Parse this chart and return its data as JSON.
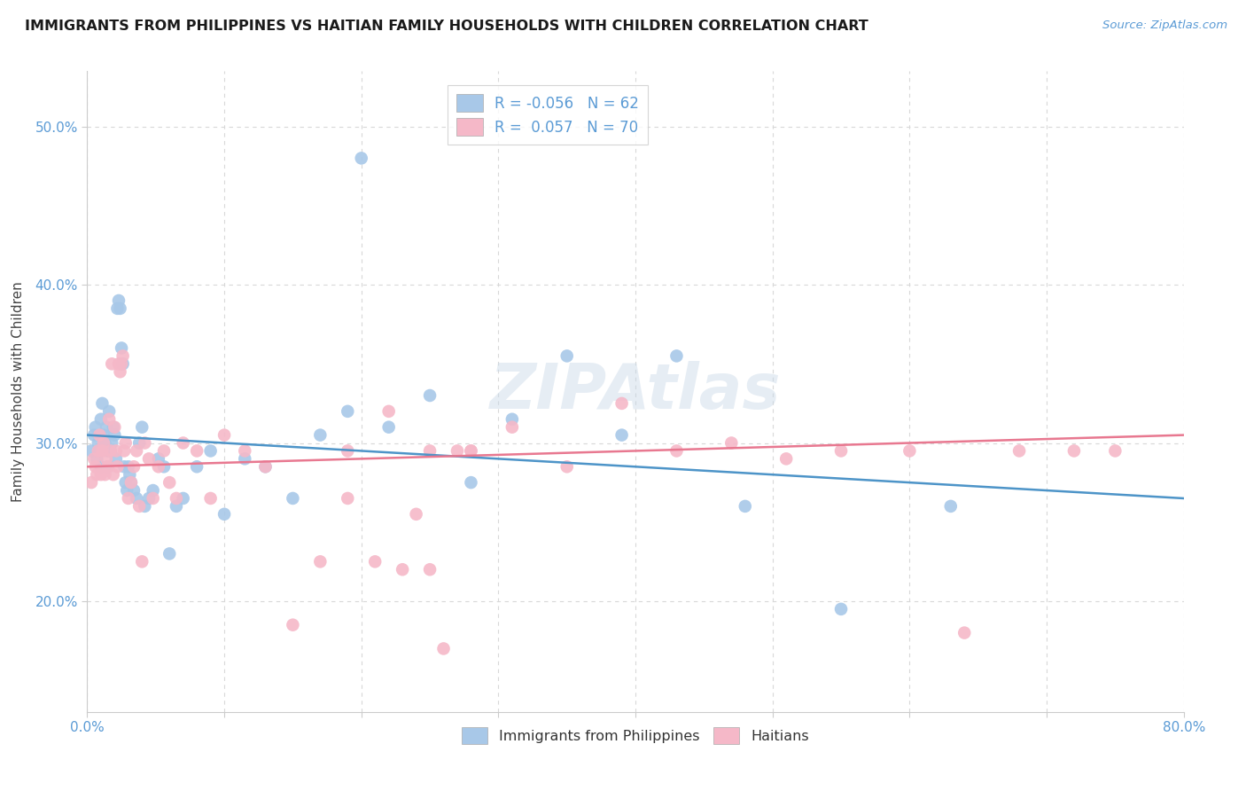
{
  "title": "IMMIGRANTS FROM PHILIPPINES VS HAITIAN FAMILY HOUSEHOLDS WITH CHILDREN CORRELATION CHART",
  "source": "Source: ZipAtlas.com",
  "ylabel": "Family Households with Children",
  "xlim": [
    0.0,
    0.8
  ],
  "ylim": [
    0.13,
    0.535
  ],
  "yticks": [
    0.2,
    0.3,
    0.4,
    0.5
  ],
  "ytick_labels": [
    "20.0%",
    "30.0%",
    "40.0%",
    "50.0%"
  ],
  "xticks": [
    0.0,
    0.1,
    0.2,
    0.3,
    0.4,
    0.5,
    0.6,
    0.7,
    0.8
  ],
  "background_color": "#ffffff",
  "grid_color": "#d8d8d8",
  "title_color": "#1a1a1a",
  "axis_tick_color": "#5b9bd5",
  "ylabel_color": "#444444",
  "watermark_text": "ZIPAtlas",
  "legend_top": {
    "series1_label": "R = -0.056   N = 62",
    "series2_label": "R =  0.057   N = 70",
    "series1_color": "#a8c8e8",
    "series2_color": "#f5b8c8"
  },
  "legend_bottom": {
    "series1_label": "Immigrants from Philippines",
    "series2_label": "Haitians",
    "series1_color": "#a8c8e8",
    "series2_color": "#f5b8c8"
  },
  "series1_color": "#a8c8e8",
  "series2_color": "#f5b8c8",
  "series1_line_color": "#4d94c8",
  "series2_line_color": "#e87890",
  "philippines_x": [
    0.003,
    0.005,
    0.006,
    0.007,
    0.008,
    0.009,
    0.01,
    0.01,
    0.011,
    0.012,
    0.013,
    0.014,
    0.015,
    0.015,
    0.016,
    0.017,
    0.018,
    0.019,
    0.02,
    0.021,
    0.022,
    0.023,
    0.024,
    0.025,
    0.026,
    0.027,
    0.028,
    0.029,
    0.03,
    0.031,
    0.032,
    0.034,
    0.036,
    0.038,
    0.04,
    0.042,
    0.045,
    0.048,
    0.052,
    0.056,
    0.06,
    0.065,
    0.07,
    0.08,
    0.09,
    0.1,
    0.115,
    0.13,
    0.15,
    0.17,
    0.19,
    0.22,
    0.25,
    0.28,
    0.31,
    0.35,
    0.39,
    0.43,
    0.48,
    0.55,
    0.63,
    0.2
  ],
  "philippines_y": [
    0.295,
    0.305,
    0.31,
    0.29,
    0.3,
    0.295,
    0.315,
    0.285,
    0.325,
    0.305,
    0.3,
    0.31,
    0.295,
    0.285,
    0.32,
    0.295,
    0.3,
    0.31,
    0.305,
    0.29,
    0.385,
    0.39,
    0.385,
    0.36,
    0.35,
    0.285,
    0.275,
    0.27,
    0.285,
    0.28,
    0.275,
    0.27,
    0.265,
    0.3,
    0.31,
    0.26,
    0.265,
    0.27,
    0.29,
    0.285,
    0.23,
    0.26,
    0.265,
    0.285,
    0.295,
    0.255,
    0.29,
    0.285,
    0.265,
    0.305,
    0.32,
    0.31,
    0.33,
    0.275,
    0.315,
    0.355,
    0.305,
    0.355,
    0.26,
    0.195,
    0.26,
    0.48
  ],
  "haitians_x": [
    0.003,
    0.005,
    0.006,
    0.007,
    0.008,
    0.009,
    0.01,
    0.011,
    0.012,
    0.013,
    0.014,
    0.015,
    0.016,
    0.017,
    0.018,
    0.019,
    0.02,
    0.021,
    0.022,
    0.023,
    0.024,
    0.025,
    0.026,
    0.027,
    0.028,
    0.03,
    0.032,
    0.034,
    0.036,
    0.038,
    0.04,
    0.042,
    0.045,
    0.048,
    0.052,
    0.056,
    0.06,
    0.065,
    0.07,
    0.08,
    0.09,
    0.1,
    0.115,
    0.13,
    0.15,
    0.17,
    0.19,
    0.22,
    0.25,
    0.28,
    0.31,
    0.35,
    0.39,
    0.43,
    0.47,
    0.51,
    0.55,
    0.6,
    0.64,
    0.68,
    0.72,
    0.75,
    0.19,
    0.21,
    0.23,
    0.24,
    0.25,
    0.26,
    0.27,
    0.28
  ],
  "haitians_y": [
    0.275,
    0.29,
    0.285,
    0.28,
    0.295,
    0.305,
    0.28,
    0.295,
    0.3,
    0.28,
    0.29,
    0.285,
    0.315,
    0.295,
    0.35,
    0.28,
    0.31,
    0.295,
    0.285,
    0.35,
    0.345,
    0.35,
    0.355,
    0.295,
    0.3,
    0.265,
    0.275,
    0.285,
    0.295,
    0.26,
    0.225,
    0.3,
    0.29,
    0.265,
    0.285,
    0.295,
    0.275,
    0.265,
    0.3,
    0.295,
    0.265,
    0.305,
    0.295,
    0.285,
    0.185,
    0.225,
    0.295,
    0.32,
    0.295,
    0.295,
    0.31,
    0.285,
    0.325,
    0.295,
    0.3,
    0.29,
    0.295,
    0.295,
    0.18,
    0.295,
    0.295,
    0.295,
    0.265,
    0.225,
    0.22,
    0.255,
    0.22,
    0.17,
    0.295,
    0.295
  ]
}
